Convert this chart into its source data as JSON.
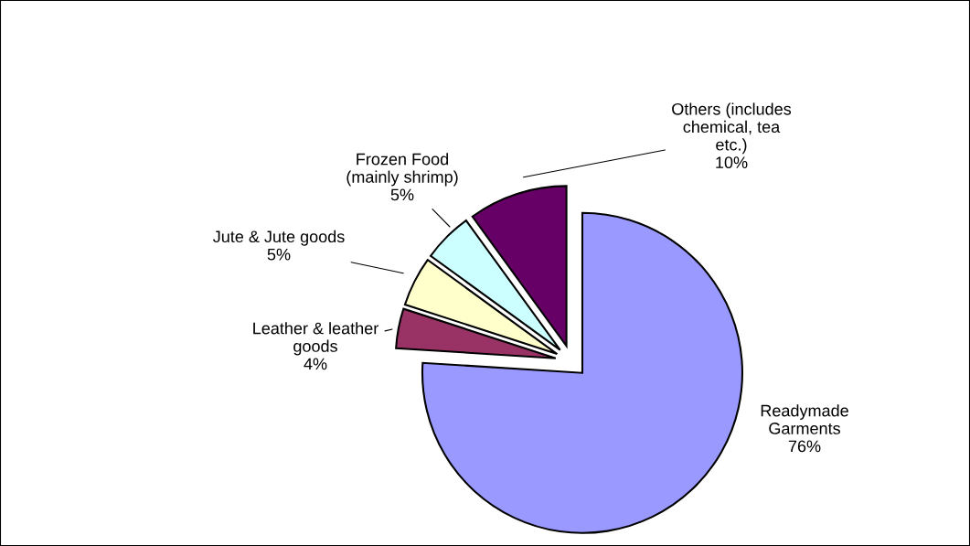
{
  "chart_data": {
    "type": "pie",
    "categories": [
      "Readymade\nGarments",
      "Leather & leather\ngoods",
      "Jute & Jute goods",
      "Frozen Food\n(mainly shrimp)",
      "Others (includes\nchemical, tea\netc.)"
    ],
    "values": [
      76,
      4,
      5,
      5,
      10
    ],
    "value_labels": [
      "76%",
      "4%",
      "5%",
      "5%",
      "10%"
    ],
    "colors": [
      "#9999ff",
      "#993366",
      "#ffffcc",
      "#ccffff",
      "#660066"
    ]
  }
}
